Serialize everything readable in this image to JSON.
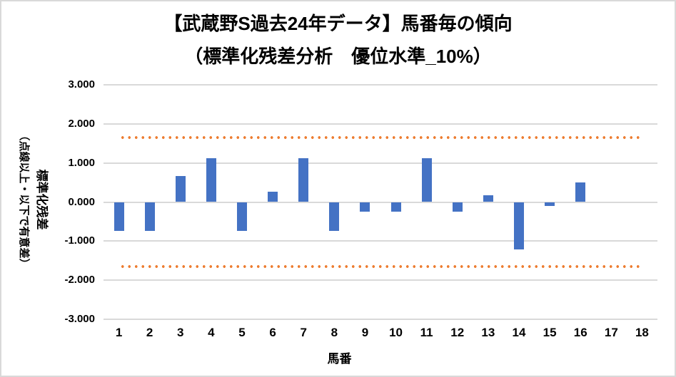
{
  "page": {
    "background": "#ffffff",
    "border_color": "#d9d9d9"
  },
  "chart_data": {
    "type": "bar",
    "title": "【武蔵野S過去24年データ】馬番毎の傾向",
    "subtitle": "（標準化残差分析　優位水準_10%）",
    "xlabel": "馬番",
    "ylabel": "標準化残差",
    "ylabel_note": "（点線以上・以下で有意差）",
    "categories": [
      "1",
      "2",
      "3",
      "4",
      "5",
      "6",
      "7",
      "8",
      "9",
      "10",
      "11",
      "12",
      "13",
      "14",
      "15",
      "16",
      "17",
      "18"
    ],
    "values": [
      -0.73,
      -0.73,
      0.67,
      1.13,
      -0.73,
      0.27,
      1.13,
      -0.73,
      -0.25,
      -0.25,
      1.13,
      -0.25,
      0.18,
      -1.21,
      -0.1,
      0.5,
      0,
      0
    ],
    "ylim": [
      -3,
      3
    ],
    "ytick_values": [
      3,
      2,
      1,
      0,
      -1,
      -2,
      -3
    ],
    "ytick_labels": [
      "3.000",
      "2.000",
      "1.000",
      "0.000",
      "-1.000",
      "-2.000",
      "-3.000"
    ],
    "significance_lines": {
      "upper": 1.645,
      "lower": -1.645,
      "style": "dotted",
      "color": "#ED7D31"
    },
    "bar_color": "#4472C4",
    "gridline_color": "#D9D9D9",
    "grid": true,
    "legend": false
  }
}
